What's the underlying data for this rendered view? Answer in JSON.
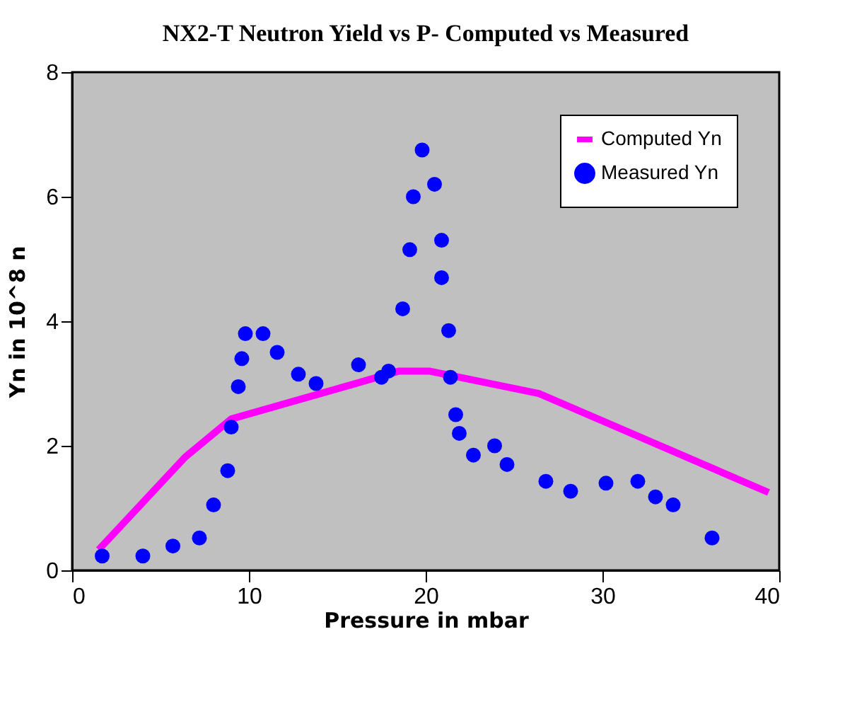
{
  "chart_data": {
    "type": "line",
    "title": "NX2-T Neutron Yield vs P- Computed vs Measured",
    "xlabel": "Pressure in mbar",
    "ylabel": "Yn in 10^8 n",
    "xlim": [
      0,
      40
    ],
    "xticks": [
      0,
      10,
      20,
      30,
      40
    ],
    "ylim": [
      0,
      8
    ],
    "yticks": [
      0,
      2,
      4,
      6,
      8
    ],
    "grid": false,
    "legend": "top right",
    "series": [
      {
        "name": "Computed Yn",
        "color": "#ff00ff",
        "line_style": "solid",
        "x": [
          1.5,
          6.4,
          9.0,
          18.5,
          20.2,
          26.4,
          39.4
        ],
        "values": [
          0.33,
          1.82,
          2.43,
          3.2,
          3.2,
          2.84,
          1.25
        ]
      },
      {
        "name": "Measured Yn",
        "type": "scatter",
        "color": "#0000ff",
        "marker": "circle",
        "x": [
          1.7,
          4.0,
          5.7,
          7.2,
          8.0,
          8.8,
          9.0,
          9.4,
          9.6,
          9.8,
          10.8,
          11.6,
          12.8,
          13.8,
          16.2,
          17.5,
          17.9,
          18.7,
          19.1,
          19.3,
          19.8,
          20.5,
          20.9,
          20.9,
          21.3,
          21.4,
          21.7,
          21.9,
          22.7,
          23.9,
          24.6,
          26.8,
          28.2,
          30.2,
          32.0,
          33.0,
          34.0,
          36.2
        ],
        "values": [
          0.23,
          0.23,
          0.39,
          0.52,
          1.05,
          1.6,
          2.3,
          2.95,
          3.4,
          3.8,
          3.8,
          3.5,
          3.15,
          3.0,
          3.3,
          3.1,
          3.2,
          4.2,
          5.15,
          6.0,
          6.75,
          6.2,
          5.3,
          4.7,
          3.85,
          3.1,
          2.5,
          2.2,
          1.85,
          2.0,
          1.7,
          1.43,
          1.27,
          1.4,
          1.43,
          1.18,
          1.05,
          0.52
        ]
      }
    ]
  }
}
